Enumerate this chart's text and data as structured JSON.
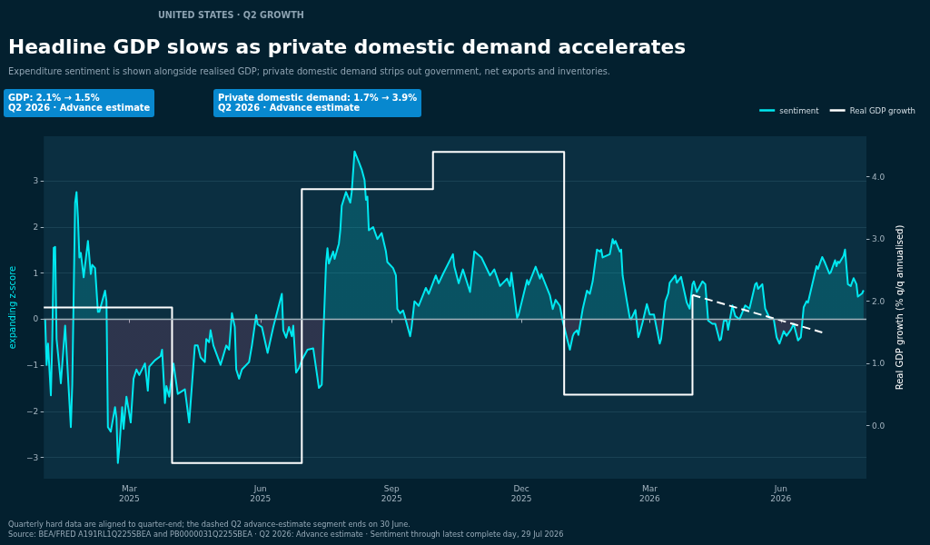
{
  "chart_data": {
    "type": "line",
    "title": "Headline GDP slows as private domestic demand accelerates",
    "subtitle": "Expenditure sentiment is shown alongside realised GDP; private domestic demand strips out government, net exports and inventories.",
    "ylabel": "expanding z-score",
    "y2label": "Real GDP growth (% q/q annualised)",
    "annotations": [
      "UNITED STATES · Q2 GROWTH",
      "GDP: 2.1% → 1.5%\nQ2 2026 · Advance estimate",
      "Private domestic demand: 1.7% → 3.9%\nQ2 2026 · Advance estimate",
      "Quarterly hard data are aligned to quarter-end; the dashed Q2 advance-estimate segment ends on 30 June.",
      "Source: BEA/FRED A191RL1Q225SBEA and PB0000031Q225SBEA · Q2 2026: Advance estimate · Sentiment through latest complete day, 29 Jul 2026"
    ],
    "xlim": [
      "2024-12-31",
      "2026-07-31"
    ],
    "xticks": [
      {
        "value": "2025-03-01",
        "label": "Mar\n2025"
      },
      {
        "value": "2025-06-01",
        "label": "Jun\n2025"
      },
      {
        "value": "2025-09-01",
        "label": "Sep\n2025"
      },
      {
        "value": "2025-12-01",
        "label": "Dec\n2025"
      },
      {
        "value": "2026-03-01",
        "label": "Mar\n2026"
      },
      {
        "value": "2026-06-01",
        "label": "Jun\n2026"
      }
    ],
    "ylim": [
      -3.46,
      3.97
    ],
    "yticks": [
      {
        "value": -3,
        "label": "−3"
      },
      {
        "value": -2,
        "label": "−2"
      },
      {
        "value": -1,
        "label": "−1"
      },
      0,
      1,
      2,
      3
    ],
    "y2lim": [
      -0.85,
      4.65
    ],
    "y2ticks": [
      {
        "value": 0,
        "label": "0.0"
      },
      {
        "value": 1,
        "label": "1.0"
      },
      {
        "value": 2,
        "label": "2.0"
      },
      {
        "value": 3,
        "label": "3.0"
      },
      {
        "value": 4,
        "label": "4.0"
      }
    ],
    "grid": "y",
    "legend": "top right",
    "ref_lines": [
      {
        "axis": "y",
        "value": 0,
        "color": "#a3b3bc"
      }
    ],
    "series": [
      {
        "name": "sentiment",
        "type": "area",
        "color": "#00e8f0",
        "x": [
          "2025-01-01",
          "2025-01-02",
          "2025-01-03",
          "2025-01-05",
          "2025-01-06",
          "2025-01-07",
          "2025-01-08",
          "2025-01-09",
          "2025-01-12",
          "2025-01-15",
          "2025-01-19",
          "2025-01-20",
          "2025-01-22",
          "2025-01-23",
          "2025-01-24",
          "2025-01-25",
          "2025-01-26",
          "2025-01-28",
          "2025-01-31",
          "2025-02-02",
          "2025-02-03",
          "2025-02-05",
          "2025-02-07",
          "2025-02-08",
          "2025-02-12",
          "2025-02-13",
          "2025-02-14",
          "2025-02-16",
          "2025-02-19",
          "2025-02-20",
          "2025-02-21",
          "2025-02-22",
          "2025-02-24",
          "2025-02-25",
          "2025-02-27",
          "2025-03-02",
          "2025-03-04",
          "2025-03-06",
          "2025-03-08",
          "2025-03-12",
          "2025-03-14",
          "2025-03-15",
          "2025-03-19",
          "2025-03-23",
          "2025-03-24",
          "2025-03-26",
          "2025-03-27",
          "2025-03-29",
          "2025-04-01",
          "2025-04-04",
          "2025-04-09",
          "2025-04-12",
          "2025-04-16",
          "2025-04-18",
          "2025-04-20",
          "2025-04-23",
          "2025-04-24",
          "2025-04-26",
          "2025-04-27",
          "2025-04-29",
          "2025-05-04",
          "2025-05-08",
          "2025-05-10",
          "2025-05-12",
          "2025-05-14",
          "2025-05-15",
          "2025-05-17",
          "2025-05-19",
          "2025-05-24",
          "2025-05-26",
          "2025-05-29",
          "2025-05-30",
          "2025-06-02",
          "2025-06-06",
          "2025-06-10",
          "2025-06-16",
          "2025-06-17",
          "2025-06-19",
          "2025-06-21",
          "2025-06-23",
          "2025-06-24",
          "2025-06-26",
          "2025-06-28",
          "2025-06-30",
          "2025-07-04",
          "2025-07-08",
          "2025-07-12",
          "2025-07-14",
          "2025-07-15",
          "2025-07-17",
          "2025-07-18",
          "2025-07-19",
          "2025-07-22",
          "2025-07-23",
          "2025-07-26",
          "2025-07-27",
          "2025-07-28",
          "2025-07-31",
          "2025-08-03",
          "2025-08-04",
          "2025-08-06",
          "2025-08-09",
          "2025-08-11",
          "2025-08-13",
          "2025-08-14",
          "2025-08-15",
          "2025-08-16",
          "2025-08-19",
          "2025-08-22",
          "2025-08-25",
          "2025-08-28",
          "2025-08-29",
          "2025-09-02",
          "2025-09-04",
          "2025-09-05",
          "2025-09-07",
          "2025-09-09",
          "2025-09-10",
          "2025-09-14",
          "2025-09-15",
          "2025-09-17",
          "2025-09-20",
          "2025-09-25",
          "2025-09-27",
          "2025-10-02",
          "2025-10-04",
          "2025-10-07",
          "2025-10-14",
          "2025-10-15",
          "2025-10-18",
          "2025-10-21",
          "2025-10-26",
          "2025-10-29",
          "2025-11-03",
          "2025-11-09",
          "2025-11-12",
          "2025-11-16",
          "2025-11-21",
          "2025-11-23",
          "2025-11-24",
          "2025-11-28",
          "2025-11-29",
          "2025-12-05",
          "2025-12-06",
          "2025-12-11",
          "2025-12-14",
          "2025-12-15",
          "2025-12-21",
          "2025-12-23",
          "2025-12-25",
          "2025-12-28",
          "2025-12-30",
          "2026-01-04",
          "2026-01-06",
          "2026-01-07",
          "2026-01-09",
          "2026-01-10",
          "2026-01-13",
          "2026-01-16",
          "2026-01-18",
          "2026-01-20",
          "2026-01-23",
          "2026-01-25",
          "2026-01-26",
          "2026-01-27",
          "2026-02-01",
          "2026-02-03",
          "2026-02-04",
          "2026-02-05",
          "2026-02-08",
          "2026-02-09",
          "2026-02-10",
          "2026-02-13",
          "2026-02-15",
          "2026-02-16",
          "2026-02-19",
          "2026-02-21",
          "2026-02-22",
          "2026-02-24",
          "2026-02-27",
          "2026-03-01",
          "2026-03-04",
          "2026-03-08",
          "2026-03-09",
          "2026-03-12",
          "2026-03-14",
          "2026-03-15",
          "2026-03-19",
          "2026-03-20",
          "2026-03-23",
          "2026-03-27",
          "2026-03-29",
          "2026-03-31",
          "2026-04-01",
          "2026-04-03",
          "2026-04-07",
          "2026-04-09",
          "2026-04-11",
          "2026-04-14",
          "2026-04-16",
          "2026-04-19",
          "2026-04-20",
          "2026-04-22",
          "2026-04-24",
          "2026-04-25",
          "2026-04-28",
          "2026-04-30",
          "2026-05-03",
          "2026-05-07",
          "2026-05-10",
          "2026-05-14",
          "2026-05-15",
          "2026-05-16",
          "2026-05-19",
          "2026-05-21",
          "2026-05-24",
          "2026-05-27",
          "2026-05-29",
          "2026-05-31",
          "2026-06-03",
          "2026-06-05",
          "2026-06-08",
          "2026-06-10",
          "2026-06-13",
          "2026-06-15",
          "2026-06-17",
          "2026-06-19",
          "2026-06-20",
          "2026-06-26",
          "2026-06-27",
          "2026-06-30",
          "2026-07-02",
          "2026-07-05",
          "2026-07-06",
          "2026-07-09",
          "2026-07-10",
          "2026-07-11",
          "2026-07-12",
          "2026-07-15",
          "2026-07-16",
          "2026-07-18",
          "2026-07-20",
          "2026-07-22",
          "2026-07-24",
          "2026-07-25",
          "2026-07-28",
          "2026-07-29"
        ],
        "values": [
          0.0,
          -0.99,
          -0.53,
          -1.65,
          -0.43,
          1.55,
          1.57,
          -0.43,
          -1.39,
          -0.14,
          -2.34,
          -1.42,
          2.53,
          2.76,
          2.2,
          1.34,
          1.44,
          0.91,
          1.7,
          0.98,
          1.18,
          1.11,
          0.16,
          0.16,
          0.62,
          0.39,
          -2.34,
          -2.44,
          -1.91,
          -2.14,
          -3.12,
          -2.8,
          -1.91,
          -2.38,
          -1.68,
          -2.24,
          -1.29,
          -1.09,
          -1.21,
          -0.96,
          -1.55,
          -1.03,
          -0.89,
          -0.8,
          -0.66,
          -1.82,
          -1.45,
          -1.68,
          -0.96,
          -1.62,
          -1.52,
          -2.24,
          -0.57,
          -0.57,
          -0.83,
          -0.93,
          -0.43,
          -0.5,
          -0.24,
          -0.57,
          -0.99,
          -0.57,
          -0.66,
          0.13,
          -0.17,
          -1.09,
          -1.29,
          -1.09,
          -0.93,
          -0.57,
          0.09,
          -0.11,
          -0.17,
          -0.73,
          -0.17,
          0.55,
          -0.24,
          -0.4,
          -0.17,
          -0.37,
          -0.14,
          -1.16,
          -1.06,
          -0.89,
          -0.66,
          -0.63,
          -1.49,
          -1.42,
          -0.43,
          1.21,
          1.54,
          1.21,
          1.47,
          1.31,
          1.64,
          1.93,
          2.46,
          2.76,
          2.53,
          2.76,
          3.64,
          3.41,
          3.25,
          3.02,
          2.59,
          2.66,
          1.93,
          2.0,
          1.74,
          1.87,
          1.47,
          1.24,
          1.11,
          0.95,
          0.22,
          0.13,
          0.19,
          0.09,
          -0.37,
          -0.17,
          0.39,
          0.29,
          0.68,
          0.55,
          0.95,
          0.78,
          0.98,
          1.41,
          1.14,
          0.78,
          1.08,
          0.59,
          1.47,
          1.34,
          0.95,
          1.08,
          0.72,
          0.88,
          0.72,
          1.01,
          0.03,
          0.09,
          0.85,
          0.75,
          1.14,
          0.88,
          0.98,
          0.52,
          0.22,
          0.42,
          0.29,
          -0.04,
          -0.66,
          -0.37,
          -0.3,
          -0.24,
          -0.34,
          0.22,
          0.62,
          0.55,
          0.82,
          1.51,
          1.47,
          1.51,
          1.34,
          1.41,
          1.74,
          1.64,
          1.7,
          1.47,
          1.51,
          0.95,
          0.39,
          0.03,
          0.0,
          0.2,
          -0.39,
          -0.3,
          -0.07,
          0.33,
          0.1,
          0.1,
          -0.53,
          -0.43,
          0.39,
          0.56,
          0.79,
          0.95,
          0.79,
          0.92,
          0.36,
          0.23,
          0.76,
          0.82,
          0.59,
          0.82,
          0.76,
          -0.03,
          -0.1,
          -0.1,
          -0.46,
          -0.43,
          -0.03,
          -0.03,
          -0.23,
          0.3,
          0.07,
          0.0,
          0.3,
          0.23,
          0.76,
          0.79,
          0.66,
          0.76,
          0.23,
          0.03,
          0.0,
          -0.39,
          -0.53,
          -0.26,
          -0.36,
          -0.23,
          -0.1,
          -0.46,
          -0.39,
          0.26,
          0.39,
          0.36,
          1.15,
          1.09,
          1.35,
          1.22,
          0.99,
          1.02,
          1.28,
          1.15,
          1.25,
          1.22,
          1.38,
          1.51,
          0.76,
          0.72,
          0.89,
          0.76,
          0.49,
          0.56,
          0.63
        ]
      },
      {
        "name": "Real GDP growth",
        "type": "step",
        "color": "#ffffff",
        "axis": "y2",
        "x": [
          "2024-12-31",
          "2025-03-31",
          "2025-06-30",
          "2025-09-30",
          "2025-12-31",
          "2026-03-31"
        ],
        "values": [
          1.9,
          -0.6,
          3.8,
          4.4,
          0.5,
          2.1
        ]
      },
      {
        "color": "#ffffff",
        "axis": "y2",
        "line_style": "dashed",
        "x": [
          "2026-03-31",
          "2026-06-30"
        ],
        "values": [
          2.1,
          1.5
        ]
      }
    ]
  }
}
